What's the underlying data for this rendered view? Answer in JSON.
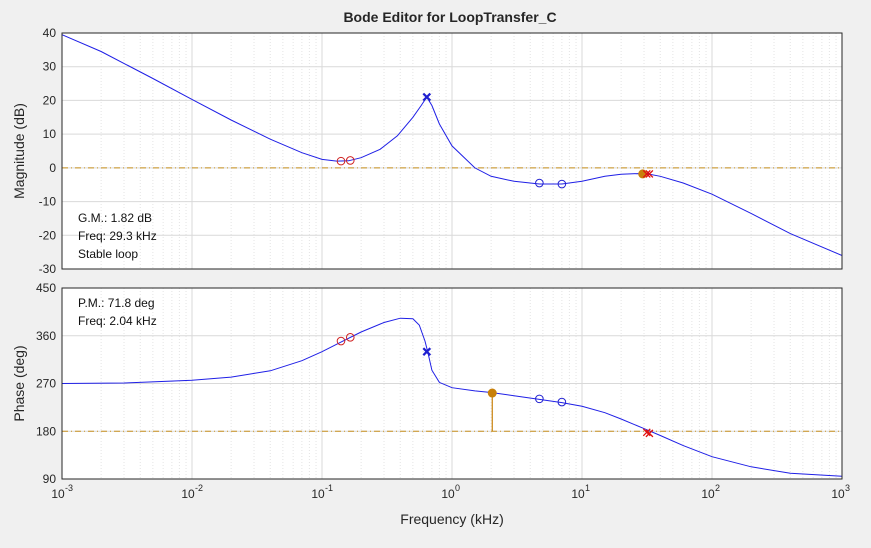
{
  "title": "Bode Editor for LoopTransfer_C",
  "colors": {
    "background": "#f0f0f0",
    "axes_bg": "#ffffff",
    "grid": "#d9d9d9",
    "curve": "#1f1fe6",
    "reference": "#c8901e",
    "zero": "#d02020",
    "pole": "#2020d0",
    "margin_marker": "#c8800a",
    "cross": "#e01010"
  },
  "chart_data": [
    {
      "type": "line",
      "name": "magnitude",
      "ylabel": "Magnitude (dB)",
      "xlabel": "",
      "xscale": "log",
      "xlim": [
        0.001,
        1000
      ],
      "ylim": [
        -30,
        40
      ],
      "yticks": [
        -30,
        -20,
        -10,
        0,
        10,
        20,
        30,
        40
      ],
      "reference_line": 0,
      "grid": true,
      "series": [
        {
          "x": [
            0.001,
            0.002,
            0.005,
            0.01,
            0.02,
            0.04,
            0.07,
            0.1,
            0.13,
            0.16,
            0.2,
            0.28,
            0.38,
            0.5,
            0.58,
            0.64,
            0.7,
            0.8,
            1,
            1.5,
            2,
            3,
            4.7,
            7,
            10,
            15,
            20,
            27,
            32,
            40,
            60,
            100,
            200,
            400,
            1000
          ],
          "y": [
            39.5,
            34.5,
            26.5,
            20.3,
            14.2,
            8.5,
            4.5,
            2.5,
            2.0,
            2.1,
            3.0,
            5.5,
            9.5,
            15.0,
            18.5,
            21.0,
            18.5,
            13.0,
            6.5,
            0.0,
            -2.5,
            -4.0,
            -4.8,
            -4.8,
            -4.0,
            -2.5,
            -1.9,
            -1.7,
            -1.8,
            -2.5,
            -4.5,
            -7.8,
            -13.5,
            -19.5,
            -26.0
          ]
        }
      ],
      "markers": {
        "zeros": [
          {
            "x": 0.14,
            "y": 2.0
          },
          {
            "x": 0.165,
            "y": 2.2
          },
          {
            "x": 4.7,
            "y": -4.5
          },
          {
            "x": 7.0,
            "y": -4.8
          }
        ],
        "poles": [
          {
            "x": 0.64,
            "y": 21.0
          },
          {
            "x": 31.5,
            "y": -1.8
          },
          {
            "x": 33.0,
            "y": -1.8
          }
        ],
        "margin_point": {
          "x": 29.3,
          "y": -1.8
        }
      },
      "annotations": [
        "G.M.: 1.82 dB",
        "Freq: 29.3 kHz",
        "Stable loop"
      ]
    },
    {
      "type": "line",
      "name": "phase",
      "ylabel": "Phase (deg)",
      "xlabel": "Frequency (kHz)",
      "xscale": "log",
      "xlim": [
        0.001,
        1000
      ],
      "ylim": [
        90,
        450
      ],
      "yticks": [
        90,
        180,
        270,
        360,
        450
      ],
      "reference_line": 180,
      "grid": true,
      "series": [
        {
          "x": [
            0.001,
            0.003,
            0.01,
            0.02,
            0.04,
            0.07,
            0.1,
            0.14,
            0.2,
            0.3,
            0.4,
            0.5,
            0.56,
            0.62,
            0.65,
            0.7,
            0.8,
            1,
            1.5,
            2,
            3,
            4.7,
            7,
            10,
            15,
            20,
            30,
            40,
            60,
            100,
            200,
            400,
            1000
          ],
          "y": [
            270,
            271,
            276,
            282,
            294,
            313,
            330,
            348,
            367,
            385,
            393,
            392,
            380,
            350,
            330,
            295,
            272,
            262,
            256,
            253,
            247,
            240,
            234,
            227,
            215,
            203,
            185,
            172,
            153,
            132,
            113,
            101,
            95
          ]
        }
      ],
      "markers": {
        "zeros": [
          {
            "x": 0.14,
            "y": 350
          },
          {
            "x": 0.165,
            "y": 357
          },
          {
            "x": 4.7,
            "y": 241
          },
          {
            "x": 7.0,
            "y": 235
          }
        ],
        "poles": [
          {
            "x": 0.64,
            "y": 330
          },
          {
            "x": 31.5,
            "y": 178
          },
          {
            "x": 33.0,
            "y": 176
          }
        ],
        "margin_point": {
          "x": 2.04,
          "y": 252
        }
      },
      "annotations": [
        "P.M.: 71.8 deg",
        "Freq: 2.04 kHz"
      ]
    }
  ],
  "x_tick_labels": [
    "10",
    "10",
    "10",
    "10",
    "10",
    "10",
    "10"
  ],
  "x_tick_exponents": [
    "-3",
    "-2",
    "-1",
    "0",
    "1",
    "2",
    "3"
  ]
}
